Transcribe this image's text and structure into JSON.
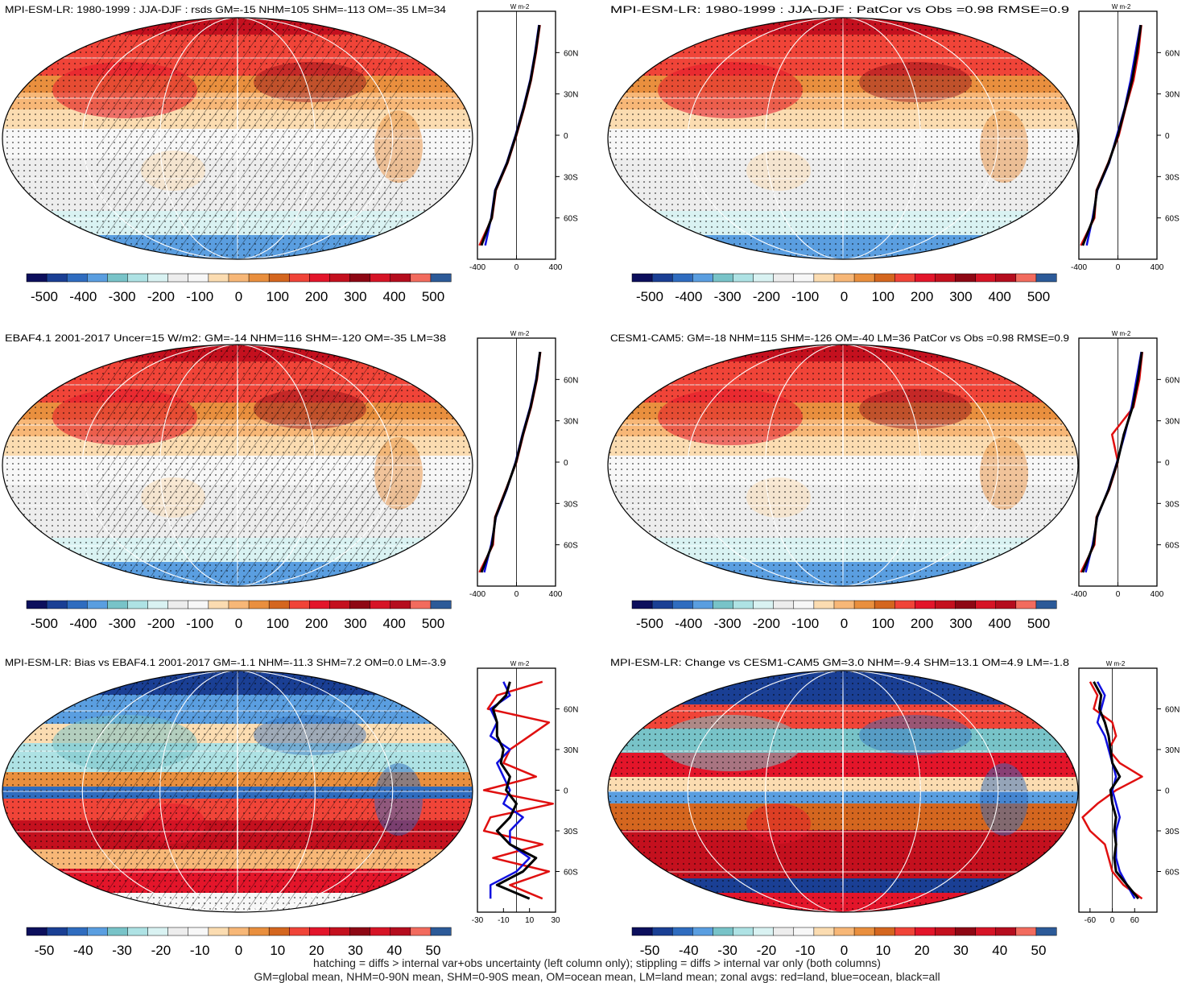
{
  "colors": {
    "scale": [
      "#0c0f5c",
      "#1a3f94",
      "#2f6cbf",
      "#5a9ee0",
      "#78c3c8",
      "#aee2e4",
      "#d9f2f2",
      "#ededed",
      "#f7f7f7",
      "#fbdcb1",
      "#f7b777",
      "#e98f3e",
      "#d4661f",
      "#f04438",
      "#e3152a",
      "#c4101e",
      "#8e0714",
      "#d61426",
      "#b50d1e",
      "#f26b5e",
      "#2c5a98"
    ],
    "land_line": "#e01010",
    "ocean_line": "#1010e0",
    "all_line": "#000000"
  },
  "chart_data": [
    {
      "type": "heatmap",
      "title": "MPI-ESM-LR: 1980-1999 : JJA-DJF : rsds GM=-15 NHM=105 SHM=-113 OM=-35 LM=34",
      "colorbar_ticks": [
        "-500",
        "-400",
        "-300",
        "-200",
        "-100",
        "0",
        "100",
        "200",
        "300",
        "400",
        "500"
      ],
      "hatching": true,
      "zonal": {
        "unit": "W m-2",
        "xticks": [
          "-400",
          "0",
          "400"
        ],
        "xlim": [
          -400,
          400
        ],
        "lat_ticks": [
          "60N",
          "30N",
          "0",
          "30S",
          "60S"
        ],
        "lat": [
          80,
          60,
          40,
          20,
          0,
          -20,
          -40,
          -60,
          -80
        ],
        "land": [
          240,
          200,
          150,
          80,
          0,
          -90,
          -210,
          -250,
          -380
        ],
        "ocean": [
          230,
          190,
          140,
          70,
          -10,
          -100,
          -220,
          -260,
          -320
        ],
        "all": [
          235,
          195,
          145,
          75,
          -5,
          -95,
          -215,
          -255,
          -360
        ]
      }
    },
    {
      "type": "heatmap",
      "title": "MPI-ESM-LR: 1980-1999 : JJA-DJF : PatCor vs Obs =0.98 RMSE=0.9",
      "colorbar_ticks": [
        "-500",
        "-400",
        "-300",
        "-200",
        "-100",
        "0",
        "100",
        "200",
        "300",
        "400",
        "500"
      ],
      "hatching": false,
      "zonal": {
        "unit": "W m-2",
        "xticks": [
          "-400",
          "0",
          "400"
        ],
        "xlim": [
          -400,
          400
        ],
        "lat_ticks": [
          "60N",
          "30N",
          "0",
          "30S",
          "60S"
        ],
        "lat": [
          80,
          60,
          40,
          20,
          0,
          -20,
          -40,
          -60,
          -80
        ],
        "land": [
          240,
          210,
          160,
          80,
          10,
          -100,
          -220,
          -240,
          -380
        ],
        "ocean": [
          230,
          180,
          130,
          70,
          -10,
          -90,
          -210,
          -260,
          -320
        ],
        "all": [
          235,
          195,
          145,
          75,
          0,
          -95,
          -215,
          -250,
          -360
        ]
      }
    },
    {
      "type": "heatmap",
      "title": "EBAF4.1 2001-2017 Uncer=15 W/m2: GM=-14 NHM=116 SHM=-120 OM=-35 LM=38",
      "colorbar_ticks": [
        "-500",
        "-400",
        "-300",
        "-200",
        "-100",
        "0",
        "100",
        "200",
        "300",
        "400",
        "500"
      ],
      "hatching": true,
      "zonal": {
        "unit": "W m-2",
        "xticks": [
          "-400",
          "0",
          "400"
        ],
        "xlim": [
          -400,
          400
        ],
        "lat_ticks": [
          "60N",
          "30N",
          "0",
          "30S",
          "60S"
        ],
        "lat": [
          80,
          60,
          40,
          20,
          0,
          -20,
          -40,
          -60,
          -80
        ],
        "land": [
          245,
          210,
          150,
          70,
          0,
          -110,
          -220,
          -240,
          -380
        ],
        "ocean": [
          240,
          200,
          140,
          60,
          -10,
          -100,
          -210,
          -260,
          -330
        ],
        "all": [
          242,
          205,
          145,
          65,
          -5,
          -105,
          -215,
          -250,
          -360
        ]
      }
    },
    {
      "type": "heatmap",
      "title": "CESM1-CAM5: GM=-18 NHM=115 SHM=-126 OM=-40 LM=36 PatCor vs Obs =0.98 RMSE=0.9",
      "colorbar_ticks": [
        "-500",
        "-400",
        "-300",
        "-200",
        "-100",
        "0",
        "100",
        "200",
        "300",
        "400",
        "500"
      ],
      "hatching": false,
      "zonal": {
        "unit": "W m-2",
        "xticks": [
          "-400",
          "0",
          "400"
        ],
        "xlim": [
          -400,
          400
        ],
        "lat_ticks": [
          "60N",
          "30N",
          "0",
          "30S",
          "60S"
        ],
        "lat": [
          80,
          60,
          40,
          20,
          0,
          -20,
          -40,
          -60,
          -80
        ],
        "land": [
          250,
          220,
          160,
          -60,
          0,
          -90,
          -220,
          -240,
          -380
        ],
        "ocean": [
          240,
          190,
          140,
          70,
          -10,
          -100,
          -210,
          -260,
          -330
        ],
        "all": [
          245,
          205,
          150,
          60,
          -5,
          -95,
          -215,
          -250,
          -360
        ]
      }
    },
    {
      "type": "heatmap",
      "title": "MPI-ESM-LR: Bias vs EBAF4.1 2001-2017 GM=-1.1 NHM=-11.3 SHM=7.2 OM=0.0 LM=-3.9",
      "colorbar_ticks": [
        "-50",
        "-40",
        "-30",
        "-20",
        "-10",
        "0",
        "10",
        "20",
        "30",
        "40",
        "50"
      ],
      "hatching": true,
      "zonal": {
        "unit": "W m-2",
        "xticks": [
          "-30",
          "-10",
          "10",
          "30"
        ],
        "xlim": [
          -30,
          30
        ],
        "lat_ticks": [
          "60N",
          "30N",
          "0",
          "30S",
          "60S"
        ],
        "lat": [
          80,
          70,
          60,
          50,
          40,
          30,
          20,
          10,
          0,
          -10,
          -20,
          -30,
          -40,
          -50,
          -60,
          -70,
          -80
        ],
        "land": [
          20,
          -15,
          -22,
          25,
          10,
          -5,
          -10,
          15,
          -25,
          28,
          -20,
          -25,
          20,
          -18,
          25,
          -5,
          20
        ],
        "ocean": [
          -10,
          -5,
          -20,
          -15,
          -20,
          -5,
          -15,
          -10,
          -5,
          -10,
          5,
          -5,
          -5,
          10,
          0,
          -20,
          -20
        ],
        "all": [
          -5,
          -8,
          -18,
          -15,
          -15,
          -10,
          -12,
          -5,
          -8,
          0,
          -5,
          -15,
          -5,
          15,
          5,
          -15,
          10
        ]
      }
    },
    {
      "type": "heatmap",
      "title": "MPI-ESM-LR: Change vs CESM1-CAM5 GM=3.0 NHM=-9.4 SHM=13.1 OM=4.9 LM=-1.8",
      "colorbar_ticks": [
        "-50",
        "-40",
        "-30",
        "-20",
        "-10",
        "0",
        "10",
        "20",
        "30",
        "40",
        "50"
      ],
      "hatching": false,
      "zonal": {
        "unit": "W m-2",
        "xticks": [
          "-60",
          "0",
          "60"
        ],
        "xlim": [
          -90,
          120
        ],
        "lat_ticks": [
          "60N",
          "30N",
          "0",
          "30S",
          "60S"
        ],
        "lat": [
          80,
          70,
          60,
          50,
          40,
          30,
          20,
          10,
          0,
          -10,
          -20,
          -30,
          -40,
          -50,
          -60,
          -70,
          -80
        ],
        "land": [
          -60,
          -40,
          -50,
          0,
          10,
          -10,
          20,
          80,
          10,
          -40,
          -80,
          -60,
          -20,
          -10,
          0,
          30,
          80
        ],
        "ocean": [
          -40,
          -20,
          -30,
          -40,
          -20,
          -10,
          0,
          10,
          0,
          10,
          20,
          10,
          10,
          10,
          20,
          40,
          60
        ],
        "all": [
          -50,
          -30,
          -35,
          -20,
          -10,
          -5,
          0,
          20,
          -5,
          0,
          10,
          5,
          10,
          5,
          10,
          40,
          70
        ]
      }
    }
  ],
  "footer": {
    "line1": "hatching = diffs > internal var+obs uncertainty (left column only); stippling = diffs > internal var only (both columns)",
    "line2": "GM=global mean, NHM=0-90N mean, SHM=0-90S mean, OM=ocean mean, LM=land mean; zonal avgs: red=land, blue=ocean, black=all"
  }
}
